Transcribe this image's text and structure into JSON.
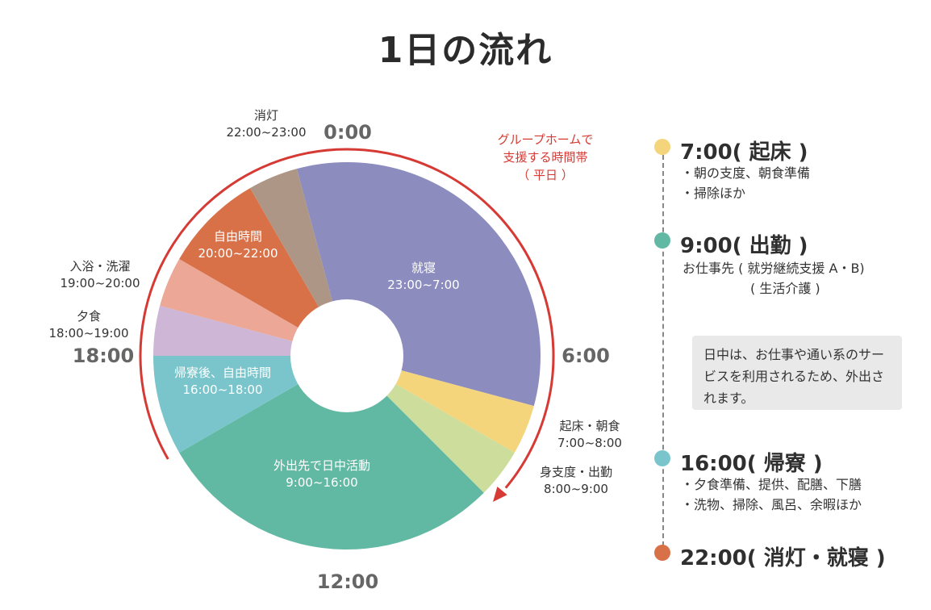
{
  "title": "1日の流れ",
  "chart_data": {
    "type": "pie",
    "variant": "donut-24h-clock",
    "slices": [
      {
        "label": "就寝",
        "range": "23:00~7:00",
        "start": 23,
        "end": 31,
        "value": 8,
        "color": "#8c8dbe",
        "label_position": "inside"
      },
      {
        "label": "起床・朝食",
        "range": "7:00~8:00",
        "start": 7,
        "end": 8,
        "value": 1,
        "color": "#f5d57c",
        "label_position": "outside"
      },
      {
        "label": "身支度・出勤",
        "range": "8:00~9:00",
        "start": 8,
        "end": 9,
        "value": 1,
        "color": "#cddd9c",
        "label_position": "outside"
      },
      {
        "label": "外出先で日中活動",
        "range": "9:00~16:00",
        "start": 9,
        "end": 16,
        "value": 7,
        "color": "#62b9a3",
        "label_position": "inside"
      },
      {
        "label": "帰寮後、自由時間",
        "range": "16:00~18:00",
        "start": 16,
        "end": 18,
        "value": 2,
        "color": "#79c5cb",
        "label_position": "inside"
      },
      {
        "label": "夕食",
        "range": "18:00~19:00",
        "start": 18,
        "end": 19,
        "value": 1,
        "color": "#cdb6d6",
        "label_position": "outside"
      },
      {
        "label": "入浴・洗濯",
        "range": "19:00~20:00",
        "start": 19,
        "end": 20,
        "value": 1,
        "color": "#eca797",
        "label_position": "outside"
      },
      {
        "label": "自由時間",
        "range": "20:00~22:00",
        "start": 20,
        "end": 22,
        "value": 2,
        "color": "#d87048",
        "label_position": "inside"
      },
      {
        "label": "消灯",
        "range": "22:00~23:00",
        "start": 22,
        "end": 23,
        "value": 1,
        "color": "#ae9686",
        "label_position": "outside"
      }
    ],
    "clock_labels": [
      "0:00",
      "6:00",
      "12:00",
      "18:00"
    ],
    "arc_annotation": {
      "lines": [
        "グループホームで",
        "支援する時間帯",
        "（ 平日 ）"
      ],
      "from_hour": 16,
      "to_hour": 9,
      "color": "#d63a34"
    }
  },
  "timeline": {
    "events": [
      {
        "heading": "7:00( 起床 )",
        "dot_color": "#f5d57c",
        "lines": [
          "・朝の支度、朝食準備",
          "・掃除ほか"
        ]
      },
      {
        "heading": "9:00( 出勤 )",
        "dot_color": "#62b9a3",
        "lines": [
          "お仕事先 ( 就労継続支援 A・B)",
          "( 生活介護 )"
        ]
      },
      {
        "heading": "16:00( 帰寮 )",
        "dot_color": "#79c5cb",
        "lines": [
          "・夕食準備、提供、配膳、下膳",
          "・洗物、掃除、風呂、余暇ほか"
        ]
      },
      {
        "heading": "22:00( 消灯・就寝 )",
        "dot_color": "#d87048",
        "lines": []
      }
    ],
    "note": "日中は、お仕事や通い系のサービスを利用されるため、外出されます。",
    "line_color": "#888888"
  }
}
